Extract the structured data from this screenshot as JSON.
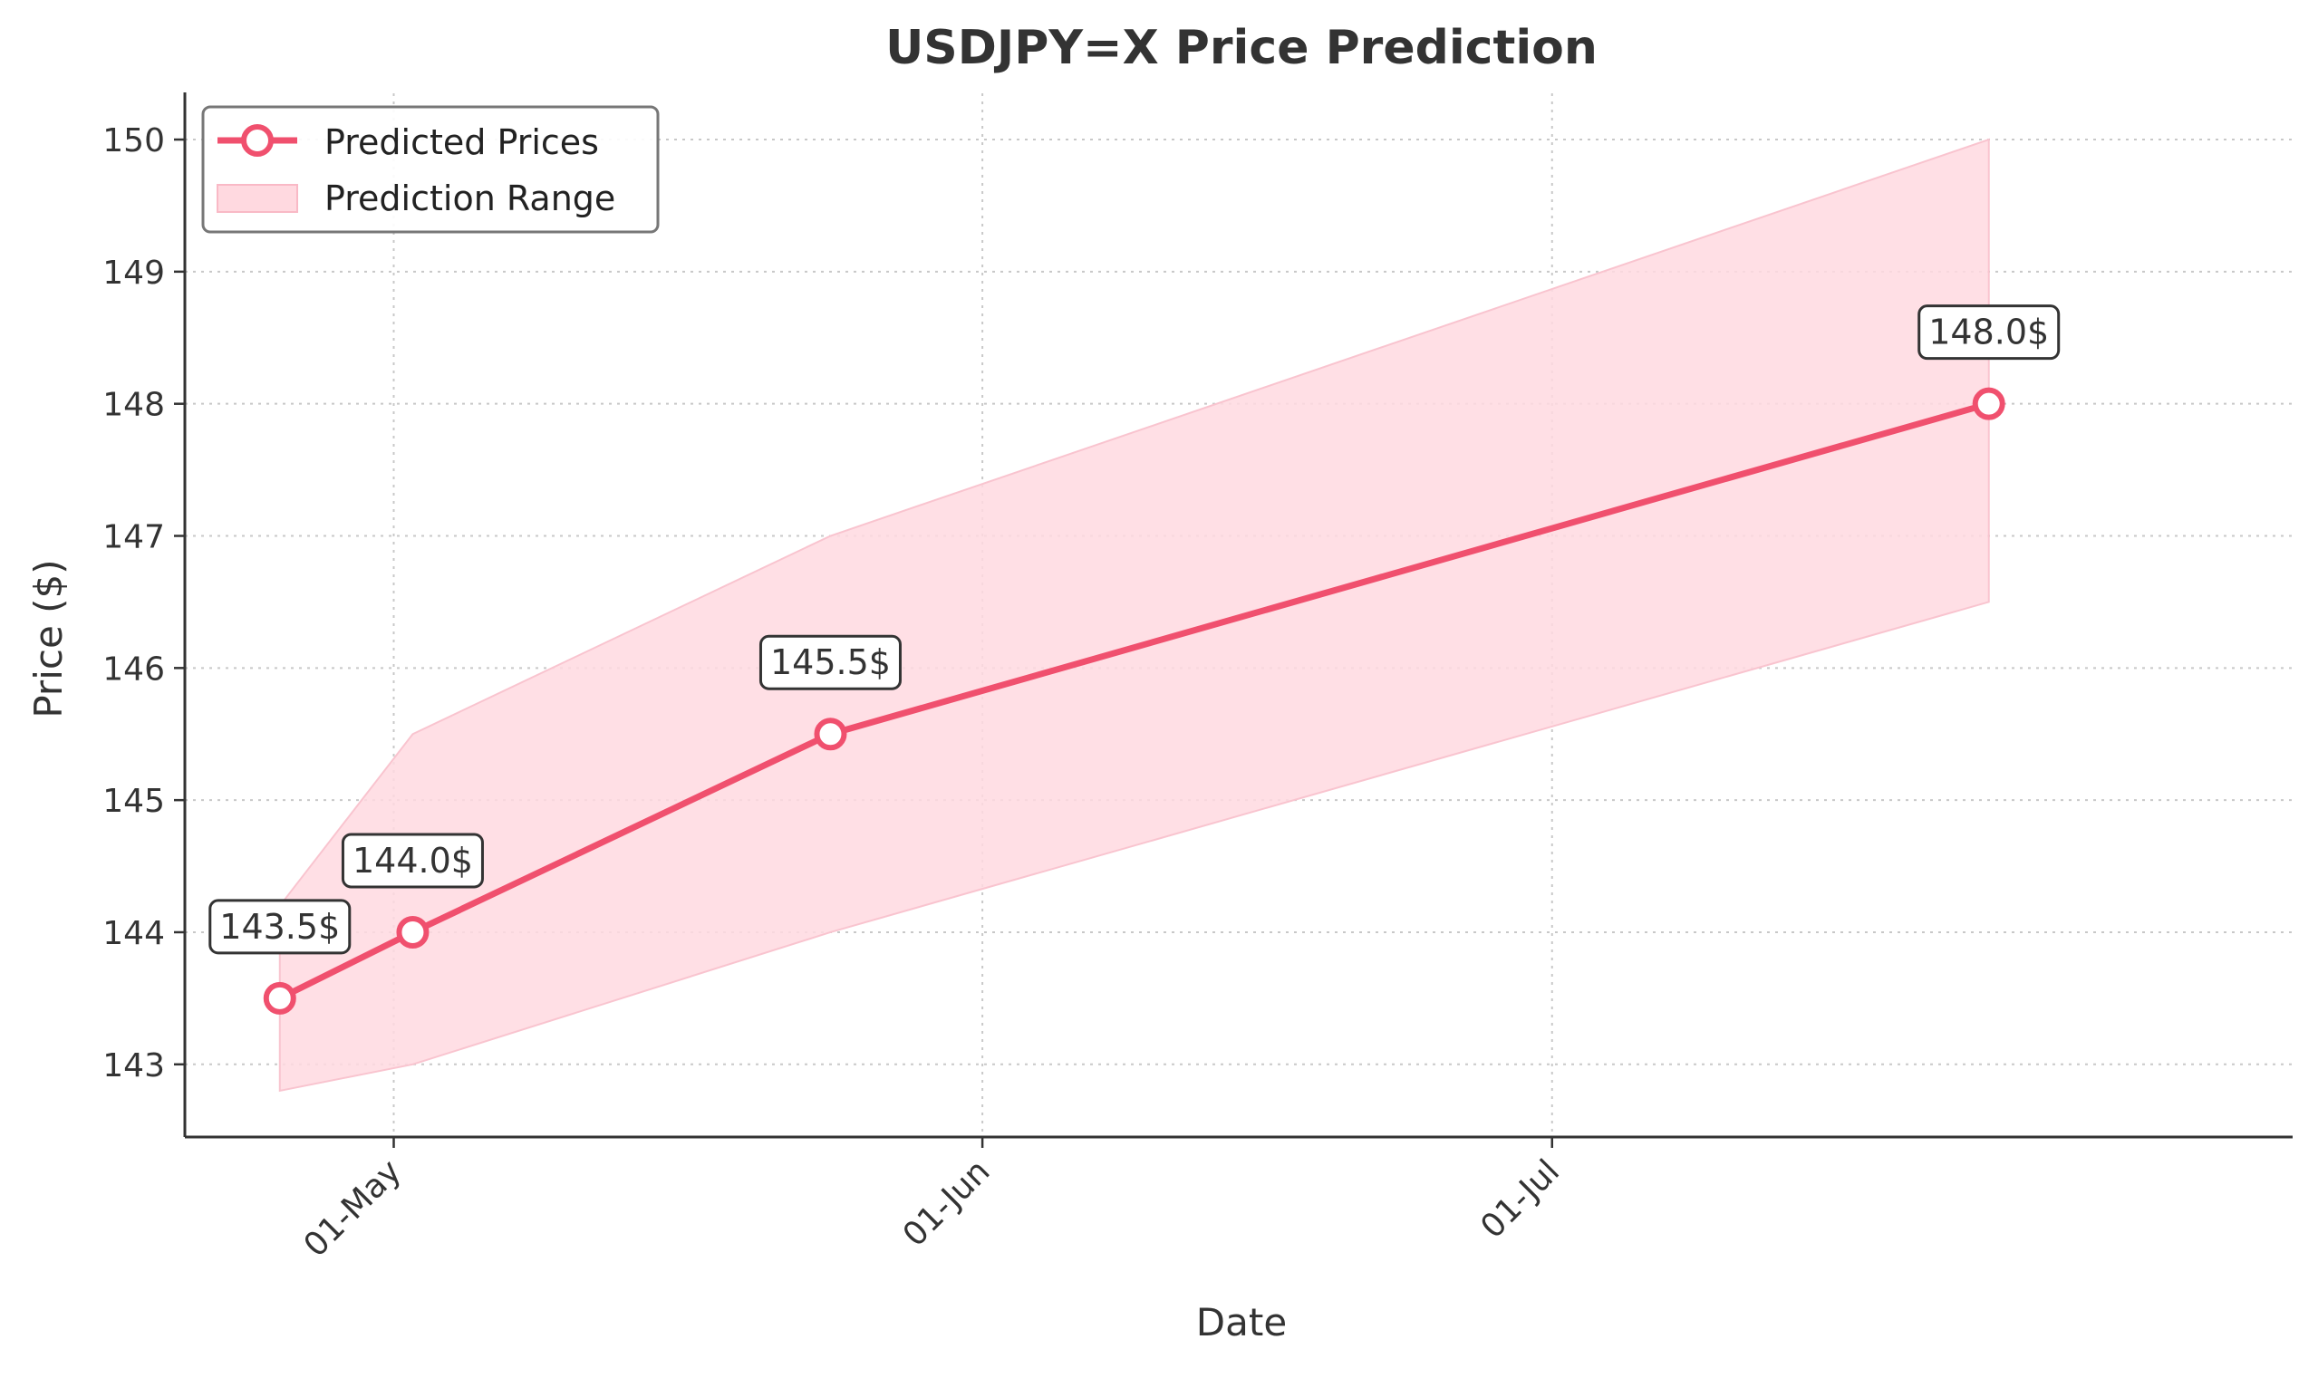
{
  "chart_data": {
    "type": "line",
    "title": "USDJPY=X Price Prediction",
    "xlabel": "Date",
    "ylabel": "Price ($)",
    "x_tick_labels": [
      "01-May",
      "01-Jun",
      "01-Jul"
    ],
    "x_ticks": [
      "2025-05-01",
      "2025-06-01",
      "2025-07-01"
    ],
    "xlim": [
      "2025-04-20",
      "2025-08-09"
    ],
    "ylim": [
      142.45,
      150.35
    ],
    "y_ticks": [
      143,
      144,
      145,
      146,
      147,
      148,
      149,
      150
    ],
    "grid": true,
    "legend_position": "upper left",
    "series": [
      {
        "name": "Predicted Prices",
        "color": "#f0506e",
        "x": [
          "2025-04-25",
          "2025-05-02",
          "2025-05-24",
          "2025-07-24"
        ],
        "values": [
          143.5,
          144.0,
          145.5,
          148.0
        ],
        "point_labels": [
          "143.5$",
          "144.0$",
          "145.5$",
          "148.0$"
        ]
      }
    ],
    "range": {
      "name": "Prediction Range",
      "color": "#f9a8b8",
      "x": [
        "2025-04-25",
        "2025-05-02",
        "2025-05-24",
        "2025-07-24"
      ],
      "upper": [
        144.2,
        145.5,
        147.0,
        150.0
      ],
      "lower": [
        142.8,
        143.0,
        144.0,
        146.5
      ]
    }
  }
}
